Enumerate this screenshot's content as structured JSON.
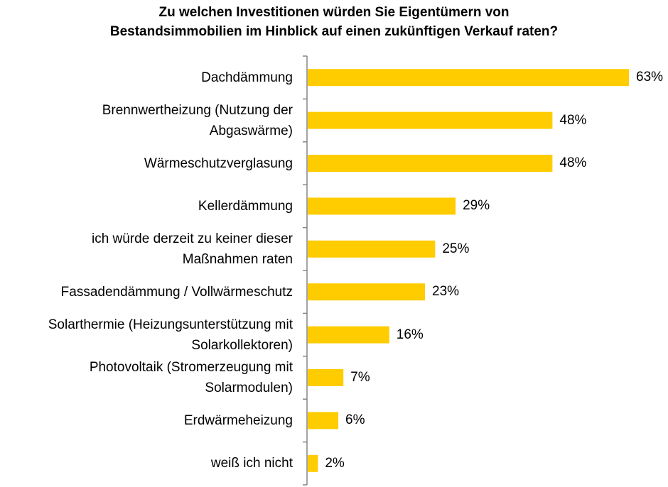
{
  "chart_data": {
    "type": "bar",
    "orientation": "horizontal",
    "title": [
      "Zu welchen Investitionen würden Sie Eigentümern von",
      "Bestandsimmobilien im Hinblick auf einen zukünftigen Verkauf raten?"
    ],
    "categories": [
      [
        "Dachdämmung"
      ],
      [
        "Brennwertheizung (Nutzung der",
        "Abgaswärme)"
      ],
      [
        "Wärmeschutzverglasung"
      ],
      [
        "Kellerdämmung"
      ],
      [
        "ich würde derzeit zu keiner dieser",
        "Maßnahmen raten"
      ],
      [
        "Fassadendämmung / Vollwärmeschutz"
      ],
      [
        "Solarthermie (Heizungsunterstützung mit",
        "Solarkollektoren)"
      ],
      [
        "Photovoltaik (Stromerzeugung mit",
        "Solarmodulen)"
      ],
      [
        "Erdwärmeheizung"
      ],
      [
        "weiß ich nicht"
      ]
    ],
    "values": [
      63,
      48,
      48,
      29,
      25,
      23,
      16,
      7,
      6,
      2
    ],
    "value_labels": [
      "63%",
      "48%",
      "48%",
      "29%",
      "25%",
      "23%",
      "16%",
      "7%",
      "6%",
      "2%"
    ],
    "bar_color": "#FFCC00",
    "axis_color": "#868686",
    "xlim": [
      0,
      63
    ],
    "grid": false,
    "legend": "none"
  }
}
